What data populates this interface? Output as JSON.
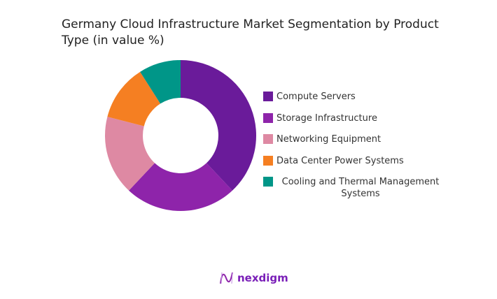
{
  "chart_data": {
    "type": "pie",
    "donut": true,
    "title": "Germany Cloud Infrastructure Market Segmentation by Product Type (in value %)",
    "categories": [
      "Compute Servers",
      "Storage Infrastructure",
      "Networking Equipment",
      "Data Center Power Systems",
      "Cooling and Thermal Management Systems"
    ],
    "values": [
      38,
      24,
      17,
      12,
      9
    ],
    "colors": [
      "#6a1b9a",
      "#8e24aa",
      "#de89a3",
      "#f57f22",
      "#009688"
    ],
    "legend_position": "right"
  },
  "brand": {
    "name": "nexdigm"
  }
}
